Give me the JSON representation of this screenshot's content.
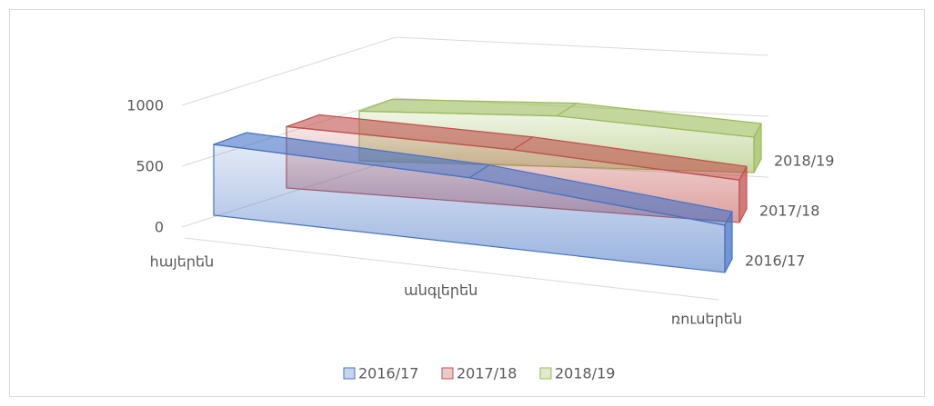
{
  "chart_data": {
    "type": "area3d",
    "categories": [
      "հայերեն",
      "անգլերեն",
      "ռուսերեն"
    ],
    "series": [
      {
        "name": "2016/17",
        "color": "#4472c4",
        "values": [
          600,
          560,
          400
        ]
      },
      {
        "name": "2017/18",
        "color": "#c0504d",
        "values": [
          520,
          470,
          360
        ]
      },
      {
        "name": "2018/19",
        "color": "#9bbb59",
        "values": [
          420,
          430,
          300
        ]
      }
    ],
    "ylim": [
      0,
      1000
    ],
    "yticks": [
      0,
      500,
      1000
    ],
    "grid": true,
    "legend": "bottom"
  }
}
